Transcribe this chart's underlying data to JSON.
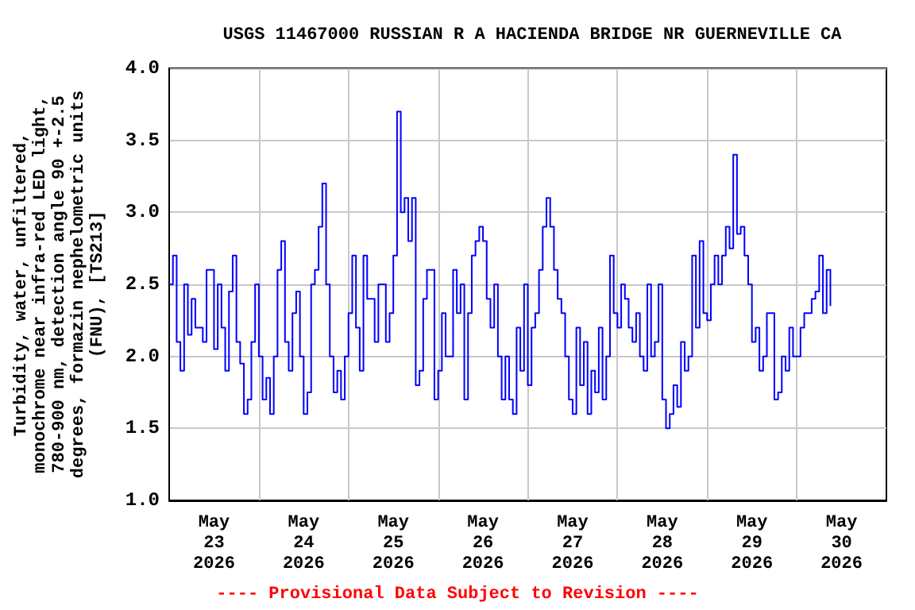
{
  "chart_data": {
    "type": "step",
    "title": "USGS 11467000 RUSSIAN R A HACIENDA BRIDGE NR GUERNEVILLE CA",
    "ylabel": "Turbidity, water, unfiltered,\nmonochrome near infra-red LED light,\n780-900 nm, detection angle 90 +-2.5\ndegrees, formazin nephelometric units\n(FNU), [TS213]",
    "annotations": [
      "---- Provisional Data Subject to Revision ----"
    ],
    "xlim": [
      "2026-05-23T00:00",
      "2026-05-31T00:00"
    ],
    "xticks": [
      {
        "value": "2026-05-23T12:00",
        "label": "May\n23\n2026"
      },
      {
        "value": "2026-05-24T00:00",
        "label": null
      },
      {
        "value": "2026-05-24T12:00",
        "label": "May\n24\n2026"
      },
      {
        "value": "2026-05-25T00:00",
        "label": null
      },
      {
        "value": "2026-05-25T12:00",
        "label": "May\n25\n2026"
      },
      {
        "value": "2026-05-26T00:00",
        "label": null
      },
      {
        "value": "2026-05-26T12:00",
        "label": "May\n26\n2026"
      },
      {
        "value": "2026-05-27T00:00",
        "label": null
      },
      {
        "value": "2026-05-27T12:00",
        "label": "May\n27\n2026"
      },
      {
        "value": "2026-05-28T00:00",
        "label": null
      },
      {
        "value": "2026-05-28T12:00",
        "label": "May\n28\n2026"
      },
      {
        "value": "2026-05-29T00:00",
        "label": null
      },
      {
        "value": "2026-05-29T12:00",
        "label": "May\n29\n2026"
      },
      {
        "value": "2026-05-30T00:00",
        "label": null
      },
      {
        "value": "2026-05-30T12:00",
        "label": "May\n30\n2026"
      }
    ],
    "ylim": [
      1,
      4
    ],
    "yticks": [
      {
        "value": 1,
        "label": "1.0"
      },
      {
        "value": 1.5,
        "label": "1.5"
      },
      {
        "value": 2,
        "label": "2.0"
      },
      {
        "value": 2.5,
        "label": "2.5"
      },
      {
        "value": 3,
        "label": "3.0"
      },
      {
        "value": 3.5,
        "label": "3.5"
      },
      {
        "value": 4,
        "label": "4.0"
      }
    ],
    "grid": true,
    "marker": "none",
    "line_style": "solid",
    "series": [
      {
        "color": "#0000ff",
        "x": [
          "2026-05-23T00:00",
          "2026-05-23T01:00",
          "2026-05-23T02:00",
          "2026-05-23T03:00",
          "2026-05-23T04:00",
          "2026-05-23T05:00",
          "2026-05-23T06:00",
          "2026-05-23T07:00",
          "2026-05-23T09:00",
          "2026-05-23T10:00",
          "2026-05-23T12:00",
          "2026-05-23T13:00",
          "2026-05-23T14:00",
          "2026-05-23T15:00",
          "2026-05-23T16:00",
          "2026-05-23T17:00",
          "2026-05-23T18:00",
          "2026-05-23T19:00",
          "2026-05-23T20:00",
          "2026-05-23T21:00",
          "2026-05-23T22:00",
          "2026-05-23T23:00",
          "2026-05-24T00:00",
          "2026-05-24T01:00",
          "2026-05-24T02:00",
          "2026-05-24T03:00",
          "2026-05-24T04:00",
          "2026-05-24T05:00",
          "2026-05-24T06:00",
          "2026-05-24T07:00",
          "2026-05-24T08:00",
          "2026-05-24T09:00",
          "2026-05-24T10:00",
          "2026-05-24T11:00",
          "2026-05-24T12:00",
          "2026-05-24T13:00",
          "2026-05-24T14:00",
          "2026-05-24T15:00",
          "2026-05-24T16:00",
          "2026-05-24T17:00",
          "2026-05-24T18:00",
          "2026-05-24T19:00",
          "2026-05-24T20:00",
          "2026-05-24T21:00",
          "2026-05-24T22:00",
          "2026-05-24T23:00",
          "2026-05-25T00:00",
          "2026-05-25T01:00",
          "2026-05-25T02:00",
          "2026-05-25T03:00",
          "2026-05-25T04:00",
          "2026-05-25T05:00",
          "2026-05-25T07:00",
          "2026-05-25T08:00",
          "2026-05-25T10:00",
          "2026-05-25T11:00",
          "2026-05-25T12:00",
          "2026-05-25T13:00",
          "2026-05-25T14:00",
          "2026-05-25T15:00",
          "2026-05-25T16:00",
          "2026-05-25T17:00",
          "2026-05-25T18:00",
          "2026-05-25T19:00",
          "2026-05-25T20:00",
          "2026-05-25T21:00",
          "2026-05-25T23:00",
          "2026-05-26T00:00",
          "2026-05-26T01:00",
          "2026-05-26T02:00",
          "2026-05-26T04:00",
          "2026-05-26T05:00",
          "2026-05-26T06:00",
          "2026-05-26T07:00",
          "2026-05-26T08:00",
          "2026-05-26T09:00",
          "2026-05-26T10:00",
          "2026-05-26T11:00",
          "2026-05-26T12:00",
          "2026-05-26T13:00",
          "2026-05-26T14:00",
          "2026-05-26T15:00",
          "2026-05-26T16:00",
          "2026-05-26T17:00",
          "2026-05-26T18:00",
          "2026-05-26T19:00",
          "2026-05-26T20:00",
          "2026-05-26T21:00",
          "2026-05-26T22:00",
          "2026-05-26T23:00",
          "2026-05-27T00:00",
          "2026-05-27T01:00",
          "2026-05-27T02:00",
          "2026-05-27T03:00",
          "2026-05-27T04:00",
          "2026-05-27T05:00",
          "2026-05-27T06:00",
          "2026-05-27T07:00",
          "2026-05-27T08:00",
          "2026-05-27T09:00",
          "2026-05-27T10:00",
          "2026-05-27T11:00",
          "2026-05-27T12:00",
          "2026-05-27T13:00",
          "2026-05-27T14:00",
          "2026-05-27T15:00",
          "2026-05-27T16:00",
          "2026-05-27T17:00",
          "2026-05-27T18:00",
          "2026-05-27T19:00",
          "2026-05-27T20:00",
          "2026-05-27T21:00",
          "2026-05-27T22:00",
          "2026-05-27T23:00",
          "2026-05-28T00:00",
          "2026-05-28T01:00",
          "2026-05-28T02:00",
          "2026-05-28T03:00",
          "2026-05-28T04:00",
          "2026-05-28T05:00",
          "2026-05-28T06:00",
          "2026-05-28T07:00",
          "2026-05-28T08:00",
          "2026-05-28T09:00",
          "2026-05-28T10:00",
          "2026-05-28T11:00",
          "2026-05-28T12:00",
          "2026-05-28T13:00",
          "2026-05-28T14:00",
          "2026-05-28T15:00",
          "2026-05-28T16:00",
          "2026-05-28T17:00",
          "2026-05-28T18:00",
          "2026-05-28T19:00",
          "2026-05-28T20:00",
          "2026-05-28T21:00",
          "2026-05-28T22:00",
          "2026-05-28T23:00",
          "2026-05-29T00:00",
          "2026-05-29T01:00",
          "2026-05-29T02:00",
          "2026-05-29T03:00",
          "2026-05-29T04:00",
          "2026-05-29T05:00",
          "2026-05-29T06:00",
          "2026-05-29T07:00",
          "2026-05-29T08:00",
          "2026-05-29T09:00",
          "2026-05-29T10:00",
          "2026-05-29T11:00",
          "2026-05-29T12:00",
          "2026-05-29T13:00",
          "2026-05-29T14:00",
          "2026-05-29T15:00",
          "2026-05-29T16:00",
          "2026-05-29T17:00",
          "2026-05-29T18:00",
          "2026-05-29T19:00",
          "2026-05-29T20:00",
          "2026-05-29T21:00",
          "2026-05-29T22:00",
          "2026-05-29T23:00",
          "2026-05-30T00:00",
          "2026-05-30T01:00",
          "2026-05-30T02:00",
          "2026-05-30T03:00",
          "2026-05-30T04:00",
          "2026-05-30T05:00",
          "2026-05-30T06:00",
          "2026-05-30T07:00",
          "2026-05-30T08:00",
          "2026-05-30T09:00"
        ],
        "values": [
          2.5,
          2.7,
          2.1,
          1.9,
          2.5,
          2.15,
          2.4,
          2.2,
          2.1,
          2.6,
          2.05,
          2.5,
          2.2,
          1.9,
          2.45,
          2.7,
          2.1,
          1.95,
          1.6,
          1.7,
          2.1,
          2.5,
          2.0,
          1.7,
          1.85,
          1.6,
          2.0,
          2.6,
          2.8,
          2.1,
          1.9,
          2.3,
          2.45,
          2.0,
          1.6,
          1.75,
          2.5,
          2.6,
          2.9,
          3.2,
          2.5,
          2.0,
          1.75,
          1.9,
          1.7,
          2.0,
          2.3,
          2.7,
          2.2,
          1.9,
          2.7,
          2.4,
          2.1,
          2.5,
          2.1,
          2.3,
          2.7,
          3.7,
          3.0,
          3.1,
          2.8,
          3.1,
          1.8,
          1.9,
          2.4,
          2.6,
          1.7,
          1.9,
          2.3,
          2.0,
          2.6,
          2.3,
          2.5,
          1.7,
          2.3,
          2.7,
          2.8,
          2.9,
          2.8,
          2.4,
          2.2,
          2.5,
          2.0,
          1.7,
          2.0,
          1.7,
          1.6,
          2.2,
          1.9,
          2.5,
          1.8,
          2.2,
          2.3,
          2.6,
          2.9,
          3.1,
          2.9,
          2.6,
          2.4,
          2.3,
          2.0,
          1.7,
          1.6,
          2.2,
          1.8,
          2.1,
          1.6,
          1.9,
          1.75,
          2.2,
          1.7,
          2.0,
          2.7,
          2.3,
          2.2,
          2.5,
          2.4,
          2.2,
          2.1,
          2.3,
          2.0,
          1.9,
          2.5,
          2.0,
          2.1,
          2.5,
          1.7,
          1.5,
          1.6,
          1.8,
          1.65,
          2.1,
          1.9,
          2.0,
          2.7,
          2.2,
          2.8,
          2.3,
          2.25,
          2.5,
          2.7,
          2.5,
          2.7,
          2.9,
          2.75,
          3.4,
          2.85,
          2.9,
          2.7,
          2.5,
          2.1,
          2.2,
          1.9,
          2.0,
          2.3,
          2.3,
          1.7,
          1.75,
          2.0,
          1.9,
          2.2,
          2.0,
          2.0,
          2.2,
          2.3,
          2.3,
          2.4,
          2.45,
          2.7,
          2.3,
          2.6,
          2.35
        ]
      }
    ]
  }
}
